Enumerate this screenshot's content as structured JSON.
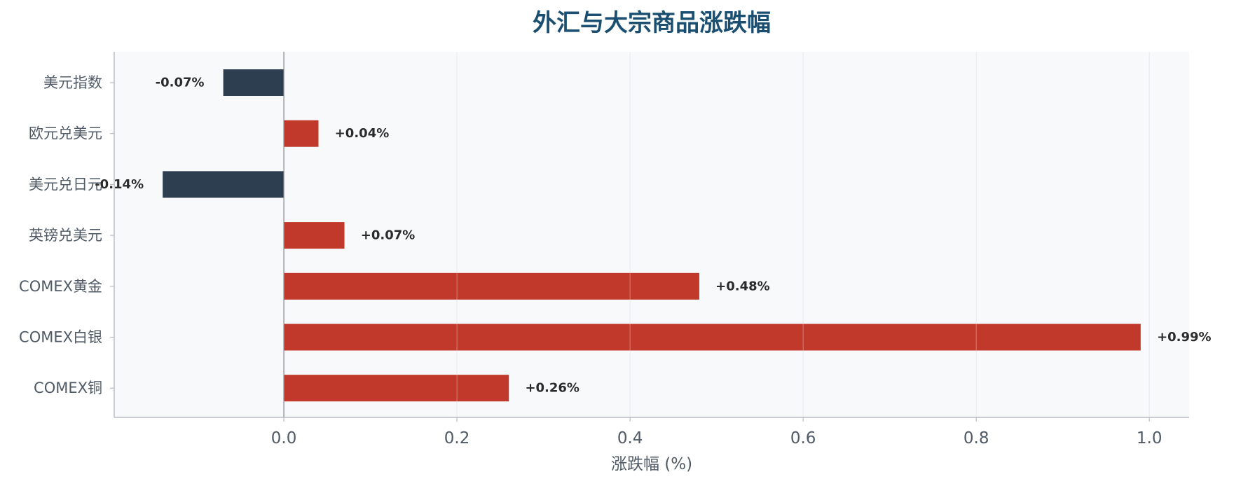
{
  "chart_data": {
    "type": "bar",
    "orientation": "horizontal",
    "title": "外汇与大宗商品涨跌幅",
    "xlabel": "涨跌幅 (%)",
    "ylabel": "",
    "categories": [
      "美元指数",
      "欧元兑美元",
      "美元兑日元",
      "英镑兑美元",
      "COMEX黄金",
      "COMEX白银",
      "COMEX铜"
    ],
    "values": [
      -0.07,
      0.04,
      -0.14,
      0.07,
      0.48,
      0.99,
      0.26
    ],
    "value_labels": [
      "-0.07%",
      "+0.04%",
      "-0.14%",
      "+0.07%",
      "+0.48%",
      "+0.99%",
      "+0.26%"
    ],
    "xlim": [
      -0.196,
      1.046
    ],
    "xticks": [
      0.0,
      0.2,
      0.4,
      0.6,
      0.8,
      1.0
    ],
    "xtick_labels": [
      "0.0",
      "0.2",
      "0.4",
      "0.6",
      "0.8",
      "1.0"
    ],
    "grid": "vertical",
    "legend": "none"
  },
  "colors": {
    "positive": "#c0392b",
    "negative": "#2c3e50",
    "title": "#1b4f72",
    "plot_background": "#f8f9fb",
    "grid": "#dde1e6",
    "axis": "#b8bcc2",
    "zero_line": "#8a8f96"
  }
}
